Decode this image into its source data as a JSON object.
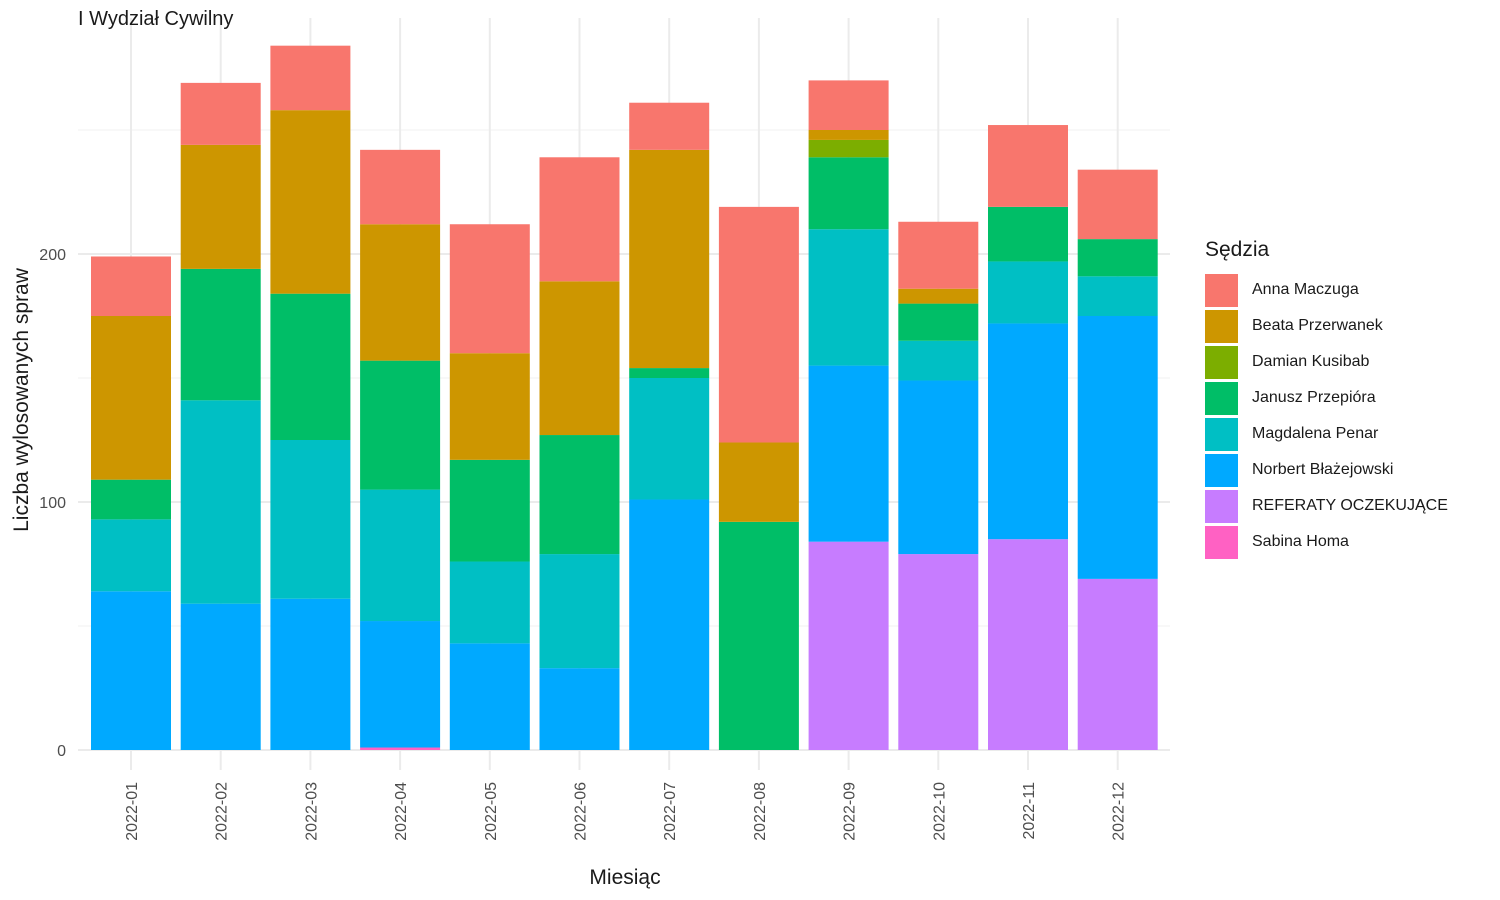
{
  "chart_data": {
    "type": "bar",
    "stacked": true,
    "title": "I Wydział Cywilny",
    "xlabel": "Miesiąc",
    "ylabel": "Liczba wylosowanych spraw",
    "legend_title": "Sędzia",
    "legend_position": "right",
    "grid": true,
    "ylim": [
      0,
      290
    ],
    "yticks": [
      0,
      100,
      200
    ],
    "categories": [
      "2022-01",
      "2022-02",
      "2022-03",
      "2022-04",
      "2022-05",
      "2022-06",
      "2022-07",
      "2022-08",
      "2022-09",
      "2022-10",
      "2022-11",
      "2022-12"
    ],
    "series": [
      {
        "name": "Sabina Homa",
        "color": "#FF61C3",
        "values": [
          0,
          0,
          0,
          1,
          0,
          0,
          0,
          0,
          0,
          0,
          0,
          0
        ]
      },
      {
        "name": "REFERATY OCZEKUJĄCE",
        "color": "#C77CFF",
        "values": [
          0,
          0,
          0,
          0,
          0,
          0,
          0,
          0,
          84,
          79,
          85,
          69
        ]
      },
      {
        "name": "Norbert Błażejowski",
        "color": "#00A9FF",
        "values": [
          64,
          59,
          61,
          51,
          43,
          33,
          101,
          0,
          71,
          70,
          87,
          106
        ]
      },
      {
        "name": "Magdalena Penar",
        "color": "#00BFC4",
        "values": [
          29,
          82,
          64,
          53,
          33,
          46,
          49,
          0,
          55,
          16,
          25,
          16
        ]
      },
      {
        "name": "Janusz Przepióra",
        "color": "#00BE67",
        "values": [
          16,
          53,
          59,
          52,
          41,
          48,
          4,
          92,
          29,
          15,
          22,
          15
        ]
      },
      {
        "name": "Damian Kusibab",
        "color": "#7CAE00",
        "values": [
          0,
          0,
          0,
          0,
          0,
          0,
          0,
          0,
          7,
          0,
          0,
          0
        ]
      },
      {
        "name": "Beata Przerwanek",
        "color": "#CD9600",
        "values": [
          66,
          50,
          74,
          55,
          43,
          62,
          88,
          32,
          4,
          6,
          0,
          0
        ]
      },
      {
        "name": "Anna Maczuga",
        "color": "#F8766D",
        "values": [
          24,
          25,
          26,
          30,
          52,
          50,
          19,
          95,
          20,
          27,
          33,
          28
        ]
      }
    ],
    "legend_order": [
      "Anna Maczuga",
      "Beata Przerwanek",
      "Damian Kusibab",
      "Janusz Przepióra",
      "Magdalena Penar",
      "Norbert Błażejowski",
      "REFERATY OCZEKUJĄCE",
      "Sabina Homa"
    ]
  }
}
